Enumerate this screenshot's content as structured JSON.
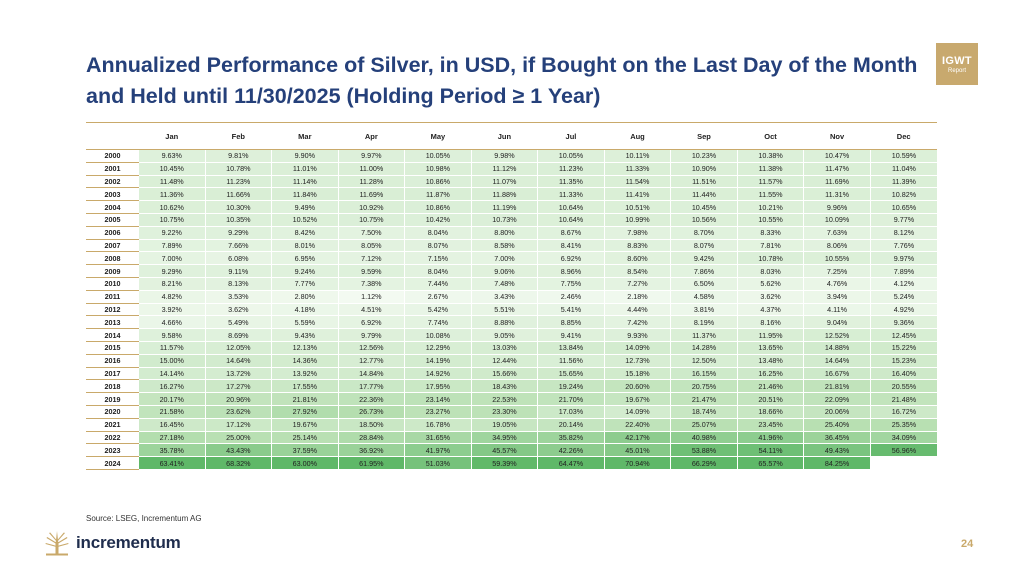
{
  "title": "Annualized Performance of Silver, in USD, if Bought on the Last Day of the Month and Held until 11/30/2025 (Holding Period ≥ 1 Year)",
  "badge": {
    "line1": "IGWT",
    "line2": "Report"
  },
  "columns": [
    "Jan",
    "Feb",
    "Mar",
    "Apr",
    "May",
    "Jun",
    "Jul",
    "Aug",
    "Sep",
    "Oct",
    "Nov",
    "Dec"
  ],
  "rows": [
    {
      "year": "2000",
      "values": [
        "9.63%",
        "9.81%",
        "9.90%",
        "9.97%",
        "10.05%",
        "9.98%",
        "10.05%",
        "10.11%",
        "10.23%",
        "10.38%",
        "10.47%",
        "10.59%"
      ]
    },
    {
      "year": "2001",
      "values": [
        "10.45%",
        "10.78%",
        "11.01%",
        "11.00%",
        "10.98%",
        "11.12%",
        "11.23%",
        "11.33%",
        "10.90%",
        "11.38%",
        "11.47%",
        "11.04%"
      ]
    },
    {
      "year": "2002",
      "values": [
        "11.48%",
        "11.23%",
        "11.14%",
        "11.28%",
        "10.86%",
        "11.07%",
        "11.35%",
        "11.54%",
        "11.51%",
        "11.57%",
        "11.69%",
        "11.39%"
      ]
    },
    {
      "year": "2003",
      "values": [
        "11.36%",
        "11.66%",
        "11.84%",
        "11.69%",
        "11.87%",
        "11.88%",
        "11.33%",
        "11.41%",
        "11.44%",
        "11.55%",
        "11.31%",
        "10.82%"
      ]
    },
    {
      "year": "2004",
      "values": [
        "10.62%",
        "10.30%",
        "9.49%",
        "10.92%",
        "10.86%",
        "11.19%",
        "10.64%",
        "10.51%",
        "10.45%",
        "10.21%",
        "9.96%",
        "10.65%"
      ]
    },
    {
      "year": "2005",
      "values": [
        "10.75%",
        "10.35%",
        "10.52%",
        "10.75%",
        "10.42%",
        "10.73%",
        "10.64%",
        "10.99%",
        "10.56%",
        "10.55%",
        "10.09%",
        "9.77%"
      ]
    },
    {
      "year": "2006",
      "values": [
        "9.22%",
        "9.29%",
        "8.42%",
        "7.50%",
        "8.04%",
        "8.80%",
        "8.67%",
        "7.98%",
        "8.70%",
        "8.33%",
        "7.63%",
        "8.12%"
      ]
    },
    {
      "year": "2007",
      "values": [
        "7.89%",
        "7.66%",
        "8.01%",
        "8.05%",
        "8.07%",
        "8.58%",
        "8.41%",
        "8.83%",
        "8.07%",
        "7.81%",
        "8.06%",
        "7.76%"
      ]
    },
    {
      "year": "2008",
      "values": [
        "7.00%",
        "6.08%",
        "6.95%",
        "7.12%",
        "7.15%",
        "7.00%",
        "6.92%",
        "8.60%",
        "9.42%",
        "10.78%",
        "10.55%",
        "9.97%"
      ]
    },
    {
      "year": "2009",
      "values": [
        "9.29%",
        "9.11%",
        "9.24%",
        "9.59%",
        "8.04%",
        "9.06%",
        "8.96%",
        "8.54%",
        "7.86%",
        "8.03%",
        "7.25%",
        "7.89%"
      ]
    },
    {
      "year": "2010",
      "values": [
        "8.21%",
        "8.13%",
        "7.77%",
        "7.38%",
        "7.44%",
        "7.48%",
        "7.75%",
        "7.27%",
        "6.50%",
        "5.62%",
        "4.76%",
        "4.12%"
      ]
    },
    {
      "year": "2011",
      "values": [
        "4.82%",
        "3.53%",
        "2.80%",
        "1.12%",
        "2.67%",
        "3.43%",
        "2.46%",
        "2.18%",
        "4.58%",
        "3.62%",
        "3.94%",
        "5.24%"
      ]
    },
    {
      "year": "2012",
      "values": [
        "3.92%",
        "3.62%",
        "4.18%",
        "4.51%",
        "5.42%",
        "5.51%",
        "5.41%",
        "4.44%",
        "3.81%",
        "4.37%",
        "4.11%",
        "4.92%"
      ]
    },
    {
      "year": "2013",
      "values": [
        "4.66%",
        "5.49%",
        "5.59%",
        "6.92%",
        "7.74%",
        "8.88%",
        "8.85%",
        "7.42%",
        "8.19%",
        "8.16%",
        "9.04%",
        "9.36%"
      ]
    },
    {
      "year": "2014",
      "values": [
        "9.58%",
        "8.69%",
        "9.43%",
        "9.79%",
        "10.08%",
        "9.05%",
        "9.41%",
        "9.93%",
        "11.37%",
        "11.95%",
        "12.52%",
        "12.45%"
      ]
    },
    {
      "year": "2015",
      "values": [
        "11.57%",
        "12.05%",
        "12.13%",
        "12.56%",
        "12.29%",
        "13.03%",
        "13.84%",
        "14.09%",
        "14.28%",
        "13.65%",
        "14.88%",
        "15.22%"
      ]
    },
    {
      "year": "2016",
      "values": [
        "15.00%",
        "14.64%",
        "14.36%",
        "12.77%",
        "14.19%",
        "12.44%",
        "11.56%",
        "12.73%",
        "12.50%",
        "13.48%",
        "14.64%",
        "15.23%"
      ]
    },
    {
      "year": "2017",
      "values": [
        "14.14%",
        "13.72%",
        "13.92%",
        "14.84%",
        "14.92%",
        "15.66%",
        "15.65%",
        "15.18%",
        "16.15%",
        "16.25%",
        "16.67%",
        "16.40%"
      ]
    },
    {
      "year": "2018",
      "values": [
        "16.27%",
        "17.27%",
        "17.55%",
        "17.77%",
        "17.95%",
        "18.43%",
        "19.24%",
        "20.60%",
        "20.75%",
        "21.46%",
        "21.81%",
        "20.55%"
      ]
    },
    {
      "year": "2019",
      "values": [
        "20.17%",
        "20.96%",
        "21.81%",
        "22.36%",
        "23.14%",
        "22.53%",
        "21.70%",
        "19.67%",
        "21.47%",
        "20.51%",
        "22.09%",
        "21.48%"
      ]
    },
    {
      "year": "2020",
      "values": [
        "21.58%",
        "23.62%",
        "27.92%",
        "26.73%",
        "23.27%",
        "23.30%",
        "17.03%",
        "14.09%",
        "18.74%",
        "18.66%",
        "20.06%",
        "16.72%"
      ]
    },
    {
      "year": "2021",
      "values": [
        "16.45%",
        "17.12%",
        "19.67%",
        "18.50%",
        "16.78%",
        "19.05%",
        "20.14%",
        "22.40%",
        "25.07%",
        "23.45%",
        "25.40%",
        "25.35%"
      ]
    },
    {
      "year": "2022",
      "values": [
        "27.18%",
        "25.00%",
        "25.14%",
        "28.84%",
        "31.65%",
        "34.95%",
        "35.82%",
        "42.17%",
        "40.98%",
        "41.96%",
        "36.45%",
        "34.09%"
      ]
    },
    {
      "year": "2023",
      "values": [
        "35.78%",
        "43.43%",
        "37.59%",
        "36.92%",
        "41.97%",
        "45.57%",
        "42.26%",
        "45.01%",
        "53.88%",
        "54.11%",
        "49.43%",
        "56.96%"
      ]
    },
    {
      "year": "2024",
      "values": [
        "63.41%",
        "68.32%",
        "63.00%",
        "61.95%",
        "51.03%",
        "59.39%",
        "64.47%",
        "70.94%",
        "66.29%",
        "65.57%",
        "84.25%",
        ""
      ]
    }
  ],
  "heat_colors": {
    "low": "#f3faf1",
    "mid": "#b9e0b3",
    "high": "#5fb868"
  },
  "source": "Source: LSEG, Incrementum AG",
  "logo_text": "incrementum",
  "logo_icon": "tree-icon",
  "page_number": "24"
}
